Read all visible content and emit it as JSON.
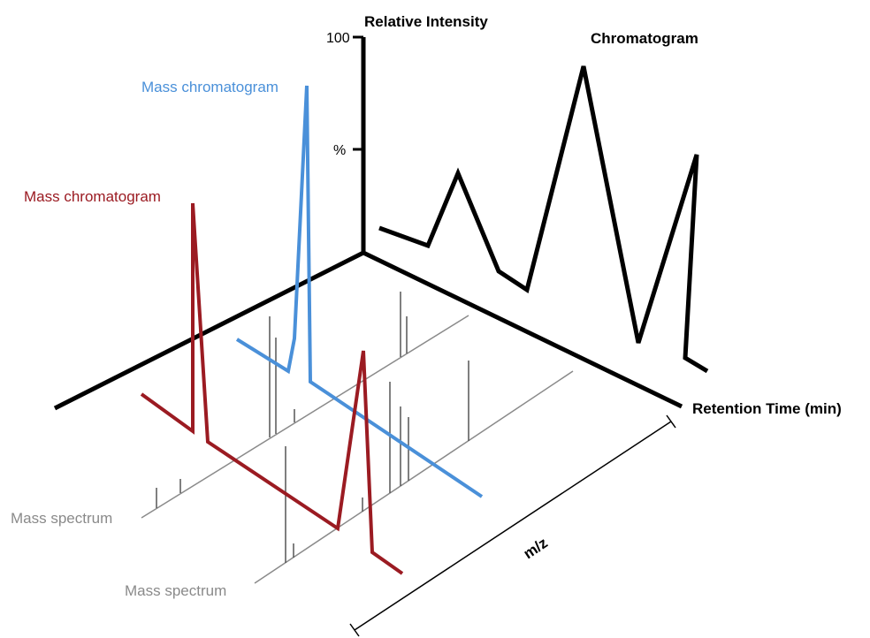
{
  "labels": {
    "y_axis": "Relative Intensity",
    "y_top": "100",
    "y_mid": "%",
    "chromatogram": "Chromatogram",
    "retention_time": "Retention Time (min)",
    "mz": "m/z",
    "mass_chromatogram_blue": "Mass chromatogram",
    "mass_chromatogram_red": "Mass chromatogram",
    "mass_spectrum_1": "Mass spectrum",
    "mass_spectrum_2": "Mass spectrum"
  },
  "colors": {
    "axes": "#000000",
    "chromatogram": "#000000",
    "mass_chromatogram_blue": "#4a90d9",
    "mass_chromatogram_red": "#9b1b22",
    "mass_spectrum": "#8a8a8a"
  }
}
